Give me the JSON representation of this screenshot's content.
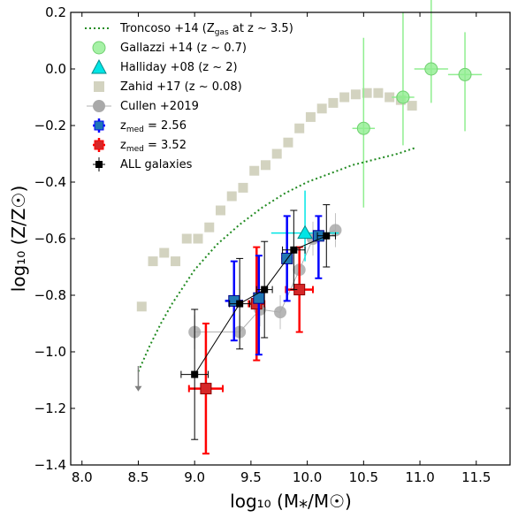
{
  "chart_data": {
    "type": "scatter",
    "xlabel": "log₁₀ (M⁎/M☉)",
    "ylabel": "log₁₀ (Z/Z☉)",
    "xlim": [
      7.9,
      11.8
    ],
    "ylim": [
      -1.4,
      0.2
    ],
    "xticks": [
      "8.0",
      "8.5",
      "9.0",
      "9.5",
      "10.0",
      "10.5",
      "11.0",
      "11.5"
    ],
    "yticks": [
      "0.2",
      "0.0",
      "−0.2",
      "−0.4",
      "−0.6",
      "−0.8",
      "−1.0",
      "−1.2",
      "−1.4"
    ],
    "legend_position": "top-left",
    "legend": [
      {
        "label": "Troncoso +14 (Z",
        "sub": "gas",
        "label_tail": " at z ~ 3.5)"
      },
      {
        "label": "Gallazzi +14 (z ~ 0.7)"
      },
      {
        "label": "Halliday +08 (z ~ 2)"
      },
      {
        "label": "Zahid +17 (z ~ 0.08)"
      },
      {
        "label": "Cullen +2019"
      },
      {
        "label": "z",
        "sub": "med",
        "label_tail": " = 2.56"
      },
      {
        "label": "z",
        "sub": "med",
        "label_tail": " = 3.52"
      },
      {
        "label": "ALL galaxies"
      }
    ],
    "colors": {
      "troncoso": "#228b22",
      "gallazzi": "#90ee90",
      "halliday": "#00e5e5",
      "zahid": "#d3d3c0",
      "cullen": "#a9a9a9",
      "z256_fill": "#1f77b4",
      "z256_err": "#0000ff",
      "z352_fill": "#d62728",
      "z352_err": "#ff0000",
      "all": "#000000"
    },
    "series": [
      {
        "id": "troncoso",
        "type": "line-dotted",
        "x": [
          8.5,
          8.6,
          8.7,
          8.8,
          8.9,
          9.0,
          9.2,
          9.4,
          9.6,
          9.8,
          10.0,
          10.2,
          10.4,
          10.6,
          10.8,
          10.95
        ],
        "y": [
          -1.07,
          -0.98,
          -0.9,
          -0.83,
          -0.77,
          -0.71,
          -0.62,
          -0.55,
          -0.49,
          -0.44,
          -0.4,
          -0.37,
          -0.34,
          -0.32,
          -0.3,
          -0.28
        ],
        "arrow": {
          "x": 8.5,
          "y_from": -1.05,
          "y_to": -1.14
        }
      },
      {
        "id": "gallazzi",
        "type": "circle-err",
        "points": [
          {
            "x": 10.5,
            "y": -0.21,
            "xerr": 0.1,
            "yerr_lo": 0.28,
            "yerr_hi": 0.32
          },
          {
            "x": 10.85,
            "y": -0.1,
            "xerr": 0.1,
            "yerr_lo": 0.17,
            "yerr_hi": 0.3
          },
          {
            "x": 11.1,
            "y": 0.0,
            "xerr": 0.15,
            "yerr_lo": 0.12,
            "yerr_hi": 0.3
          },
          {
            "x": 11.4,
            "y": -0.02,
            "xerr": 0.15,
            "yerr_lo": 0.2,
            "yerr_hi": 0.15
          }
        ]
      },
      {
        "id": "halliday",
        "type": "triangle-err",
        "points": [
          {
            "x": 9.98,
            "y": -0.58,
            "xerr": 0.3,
            "yerr_lo": 0.1,
            "yerr_hi": 0.15
          }
        ]
      },
      {
        "id": "zahid",
        "type": "square",
        "x": [
          8.53,
          8.63,
          8.73,
          8.83,
          8.93,
          9.03,
          9.13,
          9.23,
          9.33,
          9.43,
          9.53,
          9.63,
          9.73,
          9.83,
          9.93,
          10.03,
          10.13,
          10.23,
          10.33,
          10.43,
          10.53,
          10.63,
          10.73,
          10.83,
          10.93
        ],
        "y": [
          -0.84,
          -0.68,
          -0.65,
          -0.68,
          -0.6,
          -0.6,
          -0.56,
          -0.5,
          -0.45,
          -0.42,
          -0.36,
          -0.34,
          -0.3,
          -0.26,
          -0.21,
          -0.17,
          -0.14,
          -0.12,
          -0.1,
          -0.09,
          -0.085,
          -0.085,
          -0.1,
          -0.11,
          -0.13
        ]
      },
      {
        "id": "cullen",
        "type": "circle-err-line",
        "points": [
          {
            "x": 9.0,
            "y": -0.93,
            "yerr": 0.06
          },
          {
            "x": 9.4,
            "y": -0.93,
            "yerr": 0.06
          },
          {
            "x": 9.58,
            "y": -0.85,
            "yerr": 0.06
          },
          {
            "x": 9.76,
            "y": -0.86,
            "yerr": 0.06
          },
          {
            "x": 9.93,
            "y": -0.71,
            "yerr": 0.06
          },
          {
            "x": 10.05,
            "y": -0.6,
            "yerr": 0.06
          },
          {
            "x": 10.25,
            "y": -0.57,
            "yerr": 0.06
          }
        ]
      },
      {
        "id": "z256",
        "type": "square-err",
        "points": [
          {
            "x": 9.35,
            "y": -0.82,
            "xerr": 0.08,
            "yerr_lo": 0.14,
            "yerr_hi": 0.14
          },
          {
            "x": 9.57,
            "y": -0.81,
            "xerr": 0.04,
            "yerr_lo": 0.2,
            "yerr_hi": 0.15
          },
          {
            "x": 9.82,
            "y": -0.67,
            "xerr": 0.05,
            "yerr_lo": 0.15,
            "yerr_hi": 0.15
          },
          {
            "x": 10.1,
            "y": -0.59,
            "xerr": 0.05,
            "yerr_lo": 0.15,
            "yerr_hi": 0.07
          }
        ]
      },
      {
        "id": "z352",
        "type": "square-err",
        "points": [
          {
            "x": 9.1,
            "y": -1.13,
            "xerr": 0.15,
            "yerr_lo": 0.23,
            "yerr_hi": 0.23
          },
          {
            "x": 9.55,
            "y": -0.83,
            "xerr": 0.07,
            "yerr_lo": 0.2,
            "yerr_hi": 0.2
          },
          {
            "x": 9.93,
            "y": -0.78,
            "xerr": 0.12,
            "yerr_lo": 0.15,
            "yerr_hi": 0.15
          }
        ]
      },
      {
        "id": "all",
        "type": "square-err-line",
        "points": [
          {
            "x": 9.0,
            "y": -1.08,
            "xerr": 0.12,
            "yerr_lo": 0.23,
            "yerr_hi": 0.23
          },
          {
            "x": 9.4,
            "y": -0.83,
            "xerr": 0.09,
            "yerr_lo": 0.16,
            "yerr_hi": 0.16
          },
          {
            "x": 9.62,
            "y": -0.78,
            "xerr": 0.07,
            "yerr_lo": 0.17,
            "yerr_hi": 0.17
          },
          {
            "x": 9.88,
            "y": -0.64,
            "xerr": 0.1,
            "yerr_lo": 0.14,
            "yerr_hi": 0.14
          },
          {
            "x": 10.17,
            "y": -0.59,
            "xerr": 0.08,
            "yerr_lo": 0.11,
            "yerr_hi": 0.11
          }
        ]
      }
    ]
  }
}
